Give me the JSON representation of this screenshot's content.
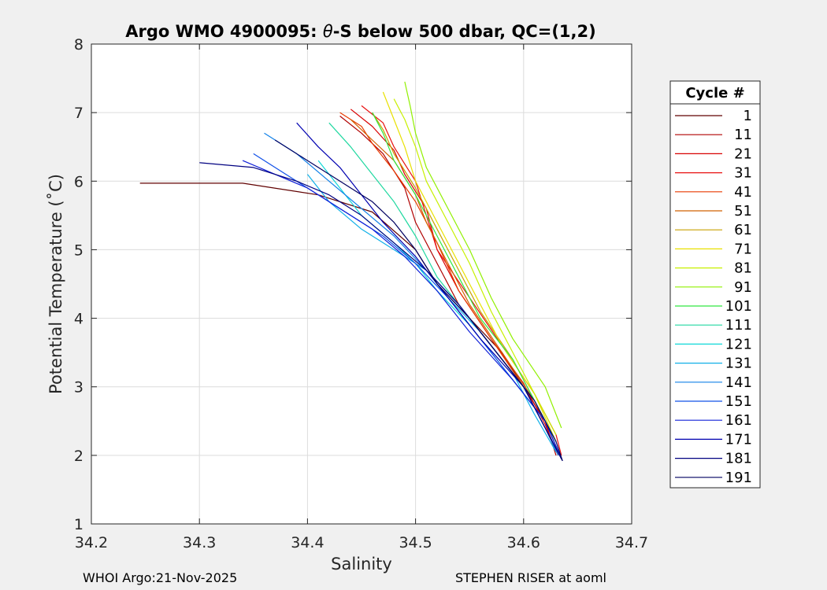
{
  "title_prefix": "Argo WMO 4900095: ",
  "title_theta": "θ",
  "title_suffix": "-S below 500 dbar,  QC=(1,2)",
  "footer_left": "WHOI Argo:21-Nov-2025",
  "footer_right": "STEPHEN RISER at aoml",
  "chart_data": {
    "type": "line",
    "xlabel": "Salinity",
    "ylabel": "Potential Temperature (˚C)",
    "xlim": [
      34.2,
      34.7
    ],
    "ylim": [
      1,
      8
    ],
    "xticks": [
      "34.2",
      "34.3",
      "34.4",
      "34.5",
      "34.6",
      "34.7"
    ],
    "yticks": [
      "1",
      "2",
      "3",
      "4",
      "5",
      "6",
      "7",
      "8"
    ],
    "grid": true,
    "legend_title": "Cycle #",
    "legend_position": "right-outside",
    "series": [
      {
        "name": "1",
        "color": "#600000",
        "points": [
          [
            34.245,
            5.97
          ],
          [
            34.34,
            5.97
          ],
          [
            34.41,
            5.8
          ],
          [
            34.46,
            5.55
          ],
          [
            34.5,
            5.0
          ],
          [
            34.52,
            4.5
          ],
          [
            34.55,
            4.0
          ],
          [
            34.58,
            3.5
          ],
          [
            34.6,
            3.0
          ],
          [
            34.62,
            2.5
          ],
          [
            34.635,
            1.95
          ]
        ]
      },
      {
        "name": "11",
        "color": "#b00000",
        "points": [
          [
            34.43,
            6.95
          ],
          [
            34.45,
            6.7
          ],
          [
            34.47,
            6.4
          ],
          [
            34.49,
            5.9
          ],
          [
            34.5,
            5.4
          ],
          [
            34.52,
            4.8
          ],
          [
            34.54,
            4.2
          ],
          [
            34.57,
            3.6
          ],
          [
            34.6,
            3.0
          ],
          [
            34.62,
            2.5
          ],
          [
            34.63,
            2.0
          ]
        ]
      },
      {
        "name": "21",
        "color": "#d80000",
        "points": [
          [
            34.44,
            7.05
          ],
          [
            34.46,
            6.8
          ],
          [
            34.48,
            6.45
          ],
          [
            34.49,
            6.1
          ],
          [
            34.51,
            5.6
          ],
          [
            34.52,
            5.0
          ],
          [
            34.54,
            4.4
          ],
          [
            34.57,
            3.7
          ],
          [
            34.6,
            3.05
          ],
          [
            34.62,
            2.45
          ],
          [
            34.632,
            2.0
          ]
        ]
      },
      {
        "name": "31",
        "color": "#e81010",
        "points": [
          [
            34.45,
            7.1
          ],
          [
            34.47,
            6.85
          ],
          [
            34.48,
            6.5
          ],
          [
            34.5,
            6.0
          ],
          [
            34.51,
            5.5
          ],
          [
            34.52,
            5.0
          ],
          [
            34.55,
            4.3
          ],
          [
            34.58,
            3.6
          ],
          [
            34.61,
            2.9
          ],
          [
            34.63,
            2.3
          ],
          [
            34.635,
            2.0
          ]
        ]
      },
      {
        "name": "41",
        "color": "#e83a00",
        "points": [
          [
            34.43,
            7.0
          ],
          [
            34.45,
            6.8
          ],
          [
            34.46,
            6.55
          ],
          [
            34.48,
            6.15
          ],
          [
            34.5,
            5.7
          ],
          [
            34.52,
            5.1
          ],
          [
            34.54,
            4.4
          ],
          [
            34.57,
            3.7
          ],
          [
            34.6,
            3.0
          ],
          [
            34.62,
            2.4
          ],
          [
            34.632,
            2.0
          ]
        ]
      },
      {
        "name": "51",
        "color": "#d06000",
        "points": [
          [
            34.44,
            6.9
          ],
          [
            34.46,
            6.6
          ],
          [
            34.48,
            6.3
          ],
          [
            34.5,
            5.8
          ],
          [
            34.51,
            5.4
          ],
          [
            34.53,
            4.8
          ],
          [
            34.55,
            4.2
          ],
          [
            34.58,
            3.5
          ],
          [
            34.61,
            2.8
          ],
          [
            34.63,
            2.2
          ]
        ]
      },
      {
        "name": "61",
        "color": "#c8a000",
        "points": [
          [
            34.46,
            7.0
          ],
          [
            34.47,
            6.75
          ],
          [
            34.48,
            6.4
          ],
          [
            34.5,
            5.9
          ],
          [
            34.52,
            5.3
          ],
          [
            34.54,
            4.7
          ],
          [
            34.56,
            4.1
          ],
          [
            34.59,
            3.4
          ],
          [
            34.61,
            2.8
          ],
          [
            34.63,
            2.2
          ]
        ]
      },
      {
        "name": "71",
        "color": "#e8e000",
        "points": [
          [
            34.47,
            7.3
          ],
          [
            34.48,
            6.9
          ],
          [
            34.49,
            6.5
          ],
          [
            34.5,
            6.0
          ],
          [
            34.52,
            5.4
          ],
          [
            34.54,
            4.8
          ],
          [
            34.56,
            4.2
          ],
          [
            34.58,
            3.6
          ],
          [
            34.61,
            2.9
          ],
          [
            34.63,
            2.2
          ]
        ]
      },
      {
        "name": "81",
        "color": "#c8f000",
        "points": [
          [
            34.48,
            7.2
          ],
          [
            34.49,
            6.9
          ],
          [
            34.5,
            6.5
          ],
          [
            34.51,
            6.0
          ],
          [
            34.53,
            5.4
          ],
          [
            34.55,
            4.8
          ],
          [
            34.57,
            4.1
          ],
          [
            34.59,
            3.5
          ],
          [
            34.61,
            2.9
          ],
          [
            34.63,
            2.3
          ]
        ]
      },
      {
        "name": "91",
        "color": "#90f000",
        "points": [
          [
            34.49,
            7.45
          ],
          [
            34.495,
            7.1
          ],
          [
            34.5,
            6.7
          ],
          [
            34.51,
            6.2
          ],
          [
            34.53,
            5.6
          ],
          [
            34.55,
            5.0
          ],
          [
            34.57,
            4.3
          ],
          [
            34.59,
            3.7
          ],
          [
            34.62,
            3.0
          ],
          [
            34.635,
            2.4
          ]
        ]
      },
      {
        "name": "101",
        "color": "#30e840",
        "points": [
          [
            34.46,
            7.0
          ],
          [
            34.47,
            6.7
          ],
          [
            34.48,
            6.3
          ],
          [
            34.5,
            5.8
          ],
          [
            34.52,
            5.2
          ],
          [
            34.54,
            4.6
          ],
          [
            34.56,
            4.0
          ],
          [
            34.59,
            3.4
          ],
          [
            34.61,
            2.8
          ],
          [
            34.63,
            2.2
          ]
        ]
      },
      {
        "name": "111",
        "color": "#20d8a0",
        "points": [
          [
            34.42,
            6.85
          ],
          [
            34.44,
            6.5
          ],
          [
            34.46,
            6.1
          ],
          [
            34.48,
            5.7
          ],
          [
            34.5,
            5.2
          ],
          [
            34.52,
            4.6
          ],
          [
            34.55,
            4.0
          ],
          [
            34.58,
            3.4
          ],
          [
            34.61,
            2.8
          ],
          [
            34.63,
            2.2
          ]
        ]
      },
      {
        "name": "121",
        "color": "#10d8d8",
        "points": [
          [
            34.41,
            6.3
          ],
          [
            34.43,
            5.9
          ],
          [
            34.45,
            5.5
          ],
          [
            34.48,
            5.1
          ],
          [
            34.5,
            4.8
          ],
          [
            34.52,
            4.4
          ],
          [
            34.55,
            3.9
          ],
          [
            34.58,
            3.3
          ],
          [
            34.61,
            2.7
          ],
          [
            34.63,
            2.1
          ]
        ]
      },
      {
        "name": "131",
        "color": "#10b0e8",
        "points": [
          [
            34.4,
            6.1
          ],
          [
            34.42,
            5.7
          ],
          [
            34.45,
            5.3
          ],
          [
            34.48,
            5.0
          ],
          [
            34.51,
            4.7
          ],
          [
            34.53,
            4.3
          ],
          [
            34.56,
            3.8
          ],
          [
            34.59,
            3.2
          ],
          [
            34.61,
            2.6
          ],
          [
            34.63,
            2.05
          ]
        ]
      },
      {
        "name": "141",
        "color": "#1080e8",
        "points": [
          [
            34.36,
            6.7
          ],
          [
            34.39,
            6.4
          ],
          [
            34.42,
            6.0
          ],
          [
            34.45,
            5.6
          ],
          [
            34.48,
            5.2
          ],
          [
            34.51,
            4.7
          ],
          [
            34.54,
            4.2
          ],
          [
            34.57,
            3.6
          ],
          [
            34.6,
            3.0
          ],
          [
            34.62,
            2.4
          ],
          [
            34.632,
            2.0
          ]
        ]
      },
      {
        "name": "151",
        "color": "#1050e8",
        "points": [
          [
            34.35,
            6.4
          ],
          [
            34.38,
            6.1
          ],
          [
            34.41,
            5.8
          ],
          [
            34.44,
            5.5
          ],
          [
            34.47,
            5.2
          ],
          [
            34.5,
            4.8
          ],
          [
            34.53,
            4.3
          ],
          [
            34.56,
            3.7
          ],
          [
            34.59,
            3.1
          ],
          [
            34.62,
            2.5
          ],
          [
            34.635,
            1.95
          ]
        ]
      },
      {
        "name": "161",
        "color": "#1020d8",
        "points": [
          [
            34.34,
            6.3
          ],
          [
            34.37,
            6.1
          ],
          [
            34.4,
            5.9
          ],
          [
            34.43,
            5.6
          ],
          [
            34.46,
            5.3
          ],
          [
            34.49,
            4.9
          ],
          [
            34.52,
            4.4
          ],
          [
            34.55,
            3.8
          ],
          [
            34.59,
            3.1
          ],
          [
            34.62,
            2.5
          ],
          [
            34.635,
            1.95
          ]
        ]
      },
      {
        "name": "171",
        "color": "#0000b0",
        "points": [
          [
            34.39,
            6.85
          ],
          [
            34.41,
            6.5
          ],
          [
            34.43,
            6.2
          ],
          [
            34.45,
            5.8
          ],
          [
            34.47,
            5.4
          ],
          [
            34.5,
            4.9
          ],
          [
            34.53,
            4.3
          ],
          [
            34.56,
            3.7
          ],
          [
            34.6,
            3.0
          ],
          [
            34.62,
            2.4
          ],
          [
            34.635,
            1.95
          ]
        ]
      },
      {
        "name": "181",
        "color": "#000080",
        "points": [
          [
            34.3,
            6.27
          ],
          [
            34.35,
            6.2
          ],
          [
            34.39,
            6.0
          ],
          [
            34.42,
            5.8
          ],
          [
            34.45,
            5.5
          ],
          [
            34.48,
            5.1
          ],
          [
            34.51,
            4.7
          ],
          [
            34.54,
            4.2
          ],
          [
            34.57,
            3.6
          ],
          [
            34.6,
            3.0
          ],
          [
            34.62,
            2.4
          ],
          [
            34.636,
            1.92
          ]
        ]
      },
      {
        "name": "191",
        "color": "#000060",
        "points": [
          [
            34.37,
            6.6
          ],
          [
            34.4,
            6.3
          ],
          [
            34.43,
            6.0
          ],
          [
            34.46,
            5.7
          ],
          [
            34.48,
            5.4
          ],
          [
            34.5,
            5.0
          ],
          [
            34.52,
            4.5
          ],
          [
            34.55,
            4.0
          ],
          [
            34.58,
            3.4
          ],
          [
            34.61,
            2.8
          ],
          [
            34.63,
            2.2
          ],
          [
            34.636,
            1.92
          ]
        ]
      }
    ]
  }
}
